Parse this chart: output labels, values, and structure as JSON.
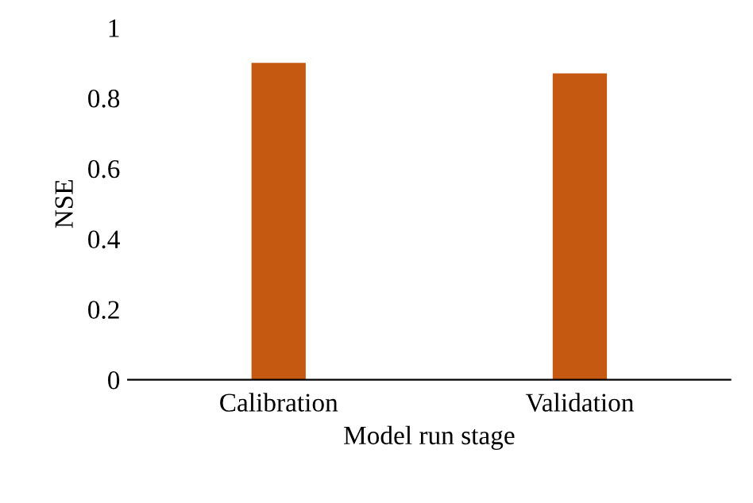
{
  "chart_data": {
    "type": "bar",
    "xlabel": "Model run stage",
    "ylabel": "NSE",
    "categories": [
      "Calibration",
      "Validation"
    ],
    "values": [
      0.9,
      0.87
    ],
    "color": "#c65911",
    "ylim": [
      0,
      1
    ],
    "yticks": [
      0,
      0.2,
      0.4,
      0.6,
      0.8,
      1
    ],
    "grid": false,
    "legend": false
  }
}
